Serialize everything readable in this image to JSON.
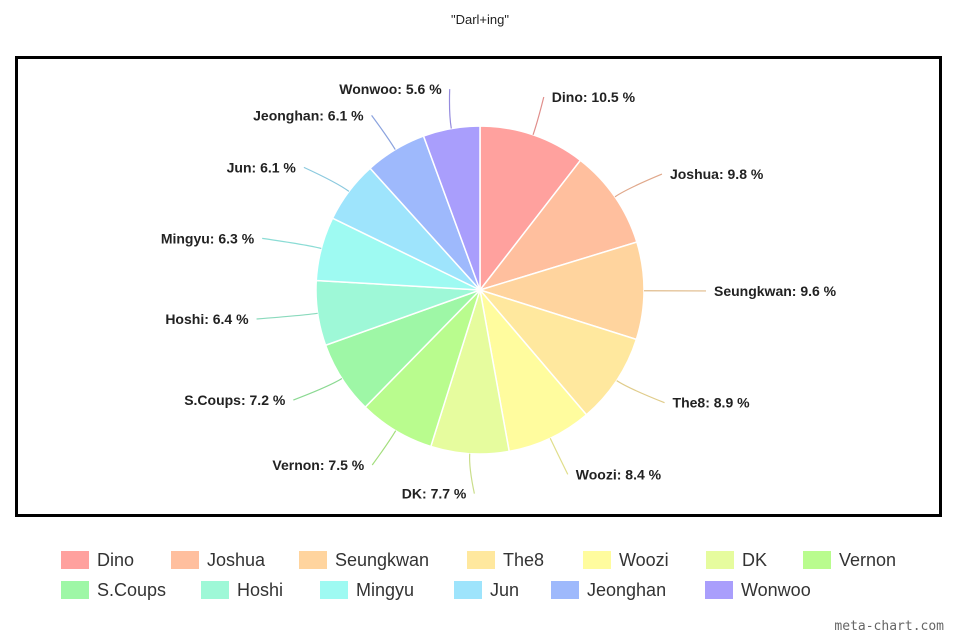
{
  "chart_data": {
    "type": "pie",
    "title": "\"Darl+ing\"",
    "legend_position": "bottom",
    "label_format": "{name}: {value} %",
    "slices": [
      {
        "name": "Dino",
        "value": 10.5,
        "color": "#FFA19E"
      },
      {
        "name": "Joshua",
        "value": 9.8,
        "color": "#FFBF9E"
      },
      {
        "name": "Seungkwan",
        "value": 9.6,
        "color": "#FFD49E"
      },
      {
        "name": "The8",
        "value": 8.9,
        "color": "#FFE89E"
      },
      {
        "name": "Woozi",
        "value": 8.4,
        "color": "#FFFC9E"
      },
      {
        "name": "DK",
        "value": 7.7,
        "color": "#E6FC9E"
      },
      {
        "name": "Vernon",
        "value": 7.5,
        "color": "#B9FC8E"
      },
      {
        "name": "S.Coups",
        "value": 7.2,
        "color": "#9EF7A6"
      },
      {
        "name": "Hoshi",
        "value": 6.4,
        "color": "#9EF8D7"
      },
      {
        "name": "Mingyu",
        "value": 6.3,
        "color": "#9EFAF2"
      },
      {
        "name": "Jun",
        "value": 6.1,
        "color": "#9EE4FC"
      },
      {
        "name": "Jeonghan",
        "value": 6.1,
        "color": "#9EB9FC"
      },
      {
        "name": "Wonwoo",
        "value": 5.6,
        "color": "#A99EFC"
      }
    ]
  },
  "watermark": "meta-chart.com"
}
